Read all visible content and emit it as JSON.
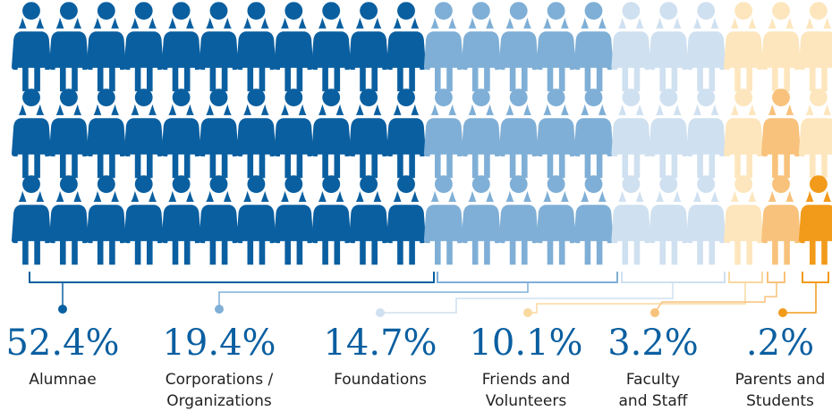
{
  "chart_data": {
    "type": "pictogram",
    "categories": [
      [
        "Alumnae"
      ],
      [
        "Corporations /",
        "Organizations"
      ],
      [
        "Foundations"
      ],
      [
        "Friends and",
        "Volunteers"
      ],
      [
        "Faculty",
        "and Staff"
      ],
      [
        "Parents and",
        "Students"
      ]
    ],
    "values": [
      52.4,
      19.4,
      14.7,
      10.1,
      3.2,
      0.2
    ],
    "value_labels": [
      "52.4%",
      "19.4%",
      "14.7%",
      "10.1%",
      "3.2%",
      ".2%"
    ],
    "colors": [
      "#0a5fa0",
      "#7fafd6",
      "#cfe0f0",
      "#fde6bd",
      "#f8c27c",
      "#f29a1a"
    ],
    "label_colors": [
      "#0a5fa0",
      "#0a5fa0",
      "#0a5fa0",
      "#0a5fa0",
      "#0a5fa0",
      "#0a5fa0"
    ]
  }
}
